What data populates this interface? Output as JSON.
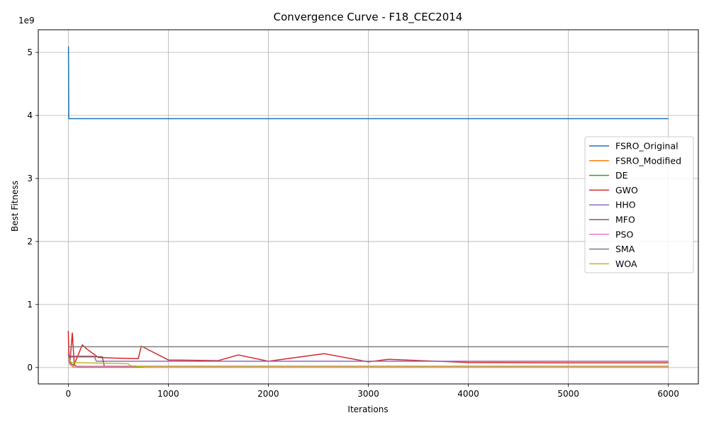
{
  "chart_data": {
    "type": "line",
    "title": "Convergence Curve - F18_CEC2014",
    "xlabel": "Iterations",
    "ylabel": "Best Fitness",
    "y_offset_label": "1e9",
    "y_scale": 1000000000,
    "xlim": [
      -300,
      6300
    ],
    "ylim": [
      -0.26,
      5.36
    ],
    "x_ticks": [
      0,
      1000,
      2000,
      3000,
      4000,
      5000,
      6000
    ],
    "x_tick_labels": [
      "0",
      "1000",
      "2000",
      "3000",
      "4000",
      "5000",
      "6000"
    ],
    "y_ticks": [
      0,
      1,
      2,
      3,
      4,
      5
    ],
    "y_tick_labels": [
      "0",
      "1",
      "2",
      "3",
      "4",
      "5"
    ],
    "grid": true,
    "legend_position": "center-right",
    "series": [
      {
        "name": "FSRO_Original",
        "color": "#1f77b4",
        "x": [
          0,
          2,
          5,
          6000
        ],
        "y": [
          5.09,
          5.09,
          3.95,
          3.95
        ]
      },
      {
        "name": "FSRO_Modified",
        "color": "#ff7f0e",
        "x": [
          0,
          20,
          50,
          6000
        ],
        "y": [
          0.2,
          0.05,
          0.004,
          0.004
        ]
      },
      {
        "name": "DE",
        "color": "#2ca02c",
        "x": [
          0,
          30,
          100,
          6000
        ],
        "y": [
          0.15,
          0.06,
          0.012,
          0.012
        ]
      },
      {
        "name": "GWO",
        "color": "#d62728",
        "x": [
          0,
          5,
          15,
          40,
          60,
          140,
          180,
          300,
          450,
          700,
          730,
          1000,
          1500,
          1700,
          2000,
          2560,
          3000,
          3200,
          4000,
          5000,
          6000
        ],
        "y": [
          0.58,
          0.25,
          0.05,
          0.55,
          0.05,
          0.36,
          0.3,
          0.16,
          0.15,
          0.14,
          0.34,
          0.12,
          0.11,
          0.2,
          0.1,
          0.22,
          0.09,
          0.13,
          0.08,
          0.075,
          0.075
        ]
      },
      {
        "name": "HHO",
        "color": "#9467bd",
        "x": [
          0,
          10,
          30,
          260,
          280,
          600,
          6000
        ],
        "y": [
          0.22,
          0.12,
          0.18,
          0.18,
          0.1,
          0.1,
          0.1
        ]
      },
      {
        "name": "MFO",
        "color": "#8c564b",
        "x": [
          0,
          30,
          340,
          360,
          6000
        ],
        "y": [
          0.18,
          0.17,
          0.17,
          0.02,
          0.02
        ]
      },
      {
        "name": "PSO",
        "color": "#e377c2",
        "x": [
          0,
          20,
          80,
          6000
        ],
        "y": [
          0.12,
          0.04,
          0.02,
          0.02
        ]
      },
      {
        "name": "SMA",
        "color": "#7f7f7f",
        "x": [
          0,
          10,
          30,
          6000
        ],
        "y": [
          0.3,
          0.33,
          0.33,
          0.33
        ]
      },
      {
        "name": "WOA",
        "color": "#bcbd22",
        "x": [
          0,
          30,
          600,
          620,
          800,
          6000
        ],
        "y": [
          0.15,
          0.08,
          0.06,
          0.03,
          0.01,
          0.01
        ]
      }
    ]
  }
}
